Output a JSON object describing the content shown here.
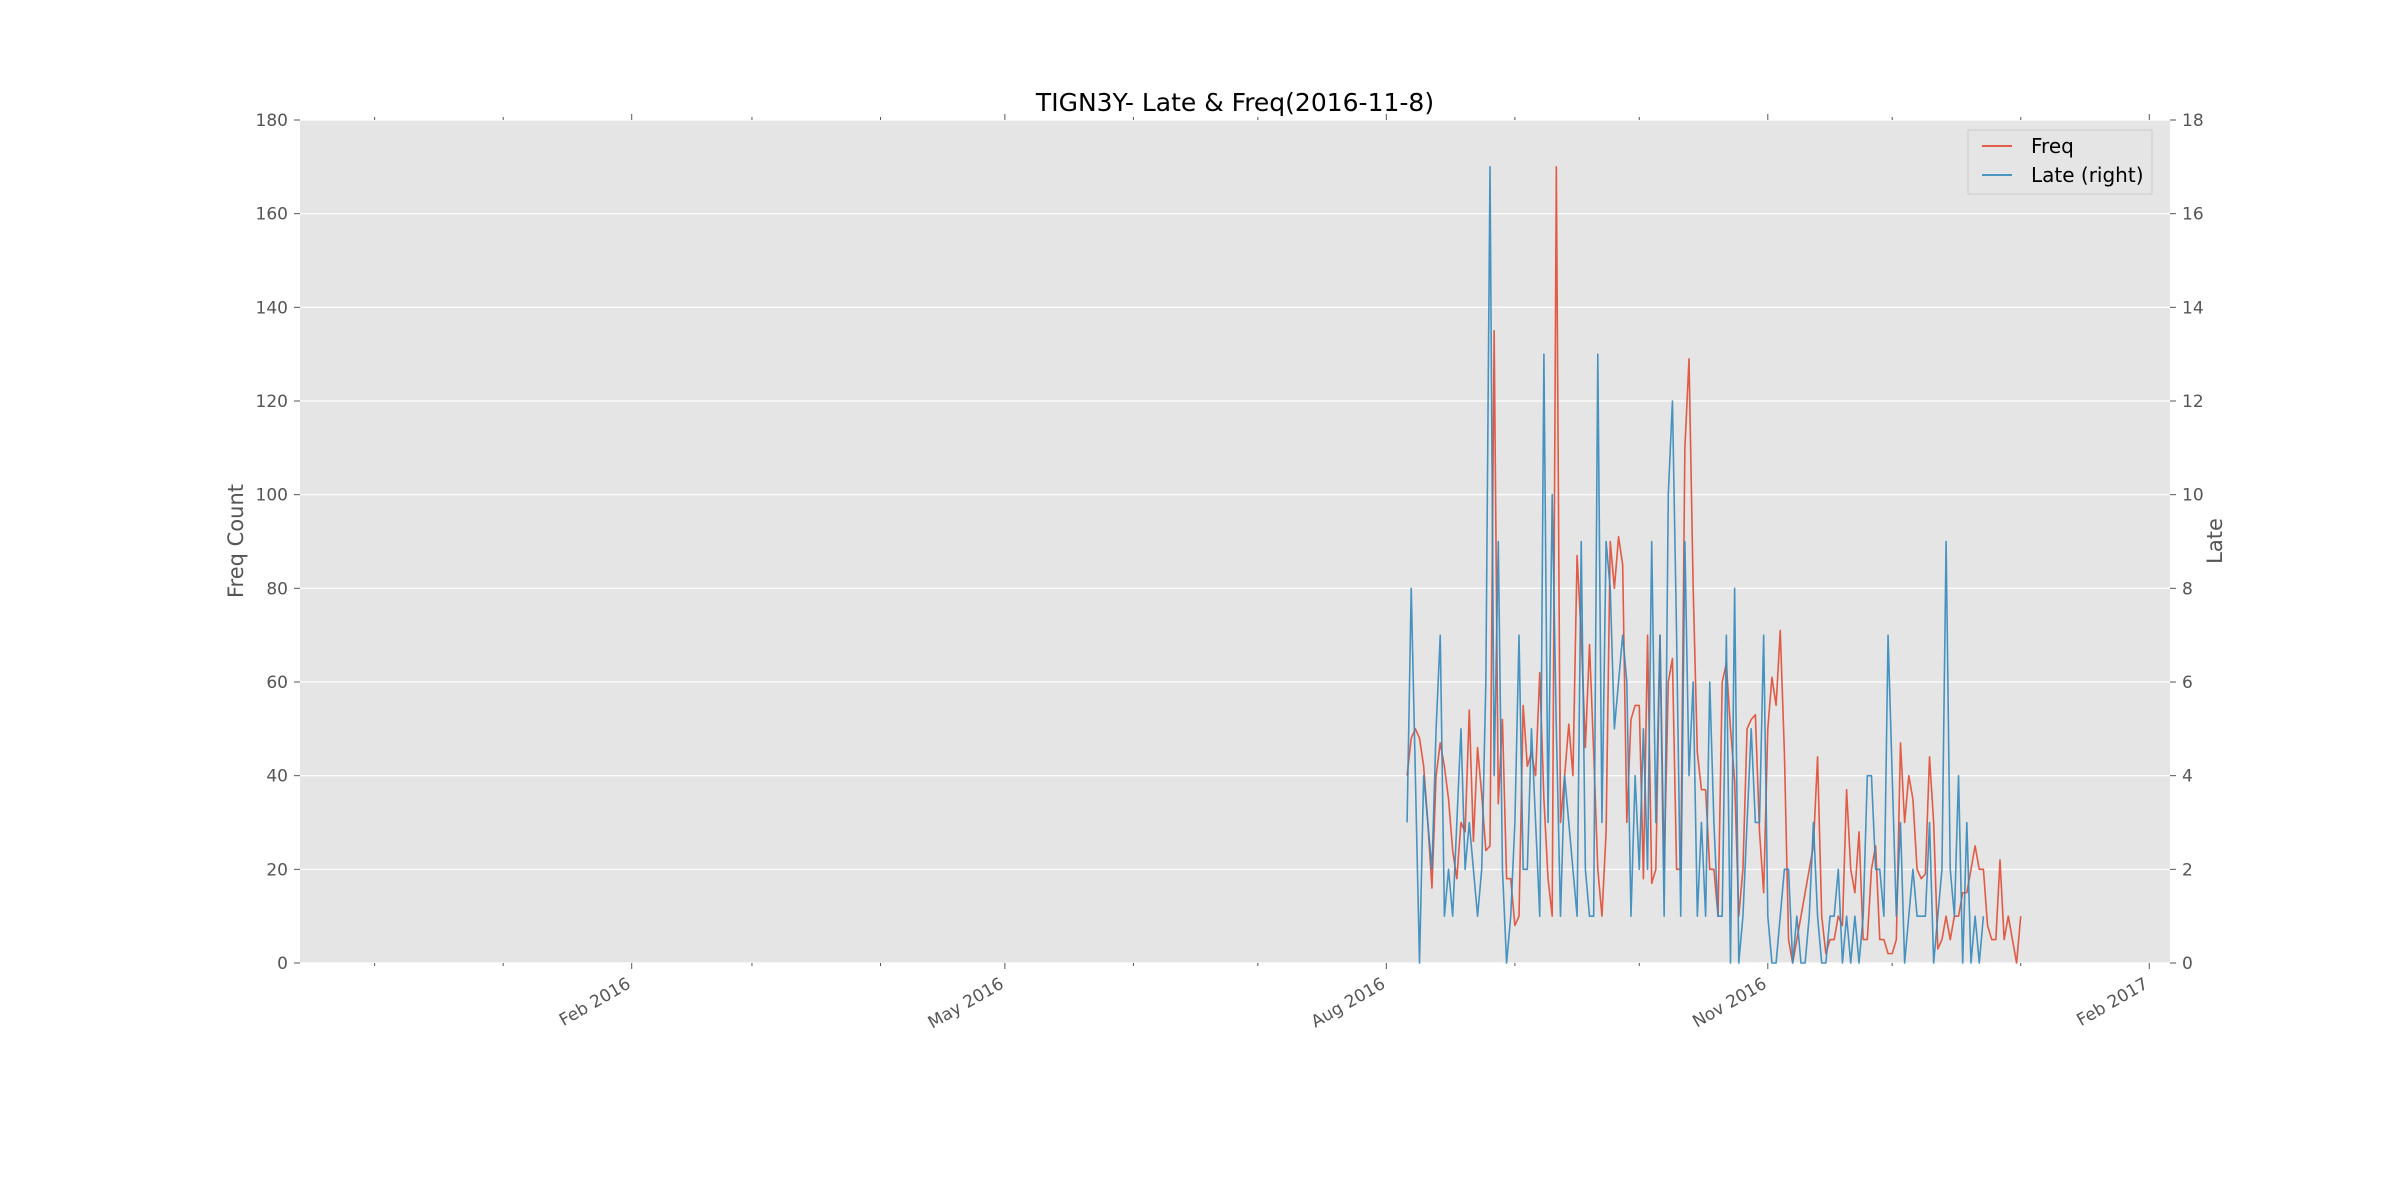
{
  "chart_data": {
    "type": "line",
    "title": "TIGN3Y- Late & Freq(2016-11-8)",
    "xlabel": "",
    "ylabel_left": "Freq Count",
    "ylabel_right": "Late",
    "xlim": [
      "2015-11-13",
      "2017-02-06"
    ],
    "ylim_left": [
      0,
      180
    ],
    "ylim_right": [
      0,
      18
    ],
    "yticks_left": [
      0,
      20,
      40,
      60,
      80,
      100,
      120,
      140,
      160,
      180
    ],
    "yticks_right": [
      0,
      2,
      4,
      6,
      8,
      10,
      12,
      14,
      16,
      18
    ],
    "xticks": [
      {
        "date": "2016-02-01",
        "label": "Feb 2016"
      },
      {
        "date": "2016-05-01",
        "label": "May 2016"
      },
      {
        "date": "2016-08-01",
        "label": "Aug 2016"
      },
      {
        "date": "2016-11-01",
        "label": "Nov 2016"
      },
      {
        "date": "2017-02-01",
        "label": "Feb 2017"
      }
    ],
    "x_minor_ticks": [
      "2015-12-01",
      "2016-01-01",
      "2016-03-01",
      "2016-04-01",
      "2016-06-01",
      "2016-07-01",
      "2016-09-01",
      "2016-10-01",
      "2016-12-01",
      "2017-01-01"
    ],
    "grid": true,
    "legend": "top-right",
    "background": "#e5e5e5",
    "series": [
      {
        "name": "Freq",
        "axis": "left",
        "color": "#e24a33",
        "start_date": "2016-08-06",
        "values": [
          40,
          48,
          50,
          48,
          42,
          30,
          16,
          40,
          47,
          42,
          35,
          24,
          18,
          30,
          28,
          54,
          26,
          46,
          36,
          24,
          25,
          135,
          34,
          52,
          18,
          18,
          8,
          10,
          55,
          42,
          45,
          40,
          62,
          35,
          18,
          10,
          170,
          30,
          40,
          51,
          40,
          87,
          70,
          46,
          68,
          45,
          20,
          10,
          28,
          90,
          80,
          91,
          85,
          30,
          52,
          55,
          55,
          18,
          70,
          17,
          20,
          70,
          20,
          60,
          65,
          20,
          20,
          110,
          129,
          80,
          45,
          37,
          37,
          20,
          20,
          10,
          60,
          64,
          50,
          39,
          10,
          20,
          50,
          52,
          53,
          28,
          15,
          50,
          61,
          55,
          71,
          45,
          5,
          0,
          5,
          10,
          15,
          20,
          25,
          44,
          10,
          2,
          5,
          5,
          10,
          8,
          37,
          20,
          15,
          28,
          5,
          5,
          20,
          25,
          5,
          5,
          2,
          2,
          5,
          47,
          30,
          40,
          35,
          20,
          18,
          19,
          44,
          30,
          3,
          5,
          10,
          5,
          10,
          10,
          15,
          15,
          20,
          25,
          20,
          20,
          8,
          5,
          5,
          22,
          5,
          10,
          5,
          0,
          10
        ],
        "note": ""
      },
      {
        "name": "Late (right)",
        "axis": "right",
        "color": "#348abd",
        "start_date": "2016-08-06",
        "values": [
          3,
          8,
          4,
          0,
          4,
          3,
          2,
          5,
          7,
          1,
          2,
          1,
          3,
          5,
          2,
          3,
          2,
          1,
          2,
          6,
          17,
          4,
          9,
          2,
          0,
          1,
          3,
          7,
          2,
          2,
          5,
          3,
          1,
          13,
          3,
          10,
          5,
          1,
          4,
          3,
          2,
          1,
          9,
          2,
          1,
          1,
          13,
          3,
          9,
          8,
          5,
          6,
          7,
          6,
          1,
          4,
          2,
          5,
          2,
          9,
          3,
          7,
          1,
          10,
          12,
          7,
          1,
          9,
          4,
          6,
          1,
          3,
          1,
          6,
          3,
          1,
          1,
          7,
          0,
          8,
          0,
          1,
          3,
          5,
          3,
          3,
          7,
          1,
          0,
          0,
          1,
          2,
          2,
          0,
          1,
          0,
          0,
          1,
          3,
          1,
          0,
          0,
          1,
          1,
          2,
          0,
          1,
          0,
          1,
          0,
          1,
          4,
          4,
          2,
          2,
          1,
          7,
          4,
          1,
          3,
          0,
          1,
          2,
          1,
          1,
          1,
          3,
          0,
          1,
          2,
          9,
          2,
          1,
          4,
          0,
          3,
          0,
          1,
          0,
          1
        ],
        "note": ""
      }
    ]
  }
}
